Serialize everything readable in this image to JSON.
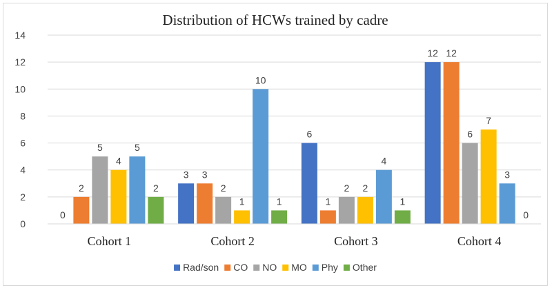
{
  "chart_data": {
    "type": "bar",
    "title": "Distribution of HCWs trained by cadre",
    "xlabel": "",
    "ylabel": "",
    "ylim": [
      0,
      14
    ],
    "yticks": [
      0,
      2,
      4,
      6,
      8,
      10,
      12,
      14
    ],
    "grid": true,
    "legend_position": "bottom",
    "categories": [
      "Cohort 1",
      "Cohort 2",
      "Cohort 3",
      "Cohort 4"
    ],
    "series": [
      {
        "name": "Rad/son",
        "color": "#4472C4",
        "values": [
          0,
          3,
          6,
          12
        ]
      },
      {
        "name": "CO",
        "color": "#ED7D31",
        "values": [
          2,
          3,
          1,
          12
        ]
      },
      {
        "name": "NO",
        "color": "#A5A5A5",
        "values": [
          5,
          2,
          2,
          6
        ]
      },
      {
        "name": "MO",
        "color": "#FFC000",
        "values": [
          4,
          1,
          2,
          7
        ]
      },
      {
        "name": "Phy",
        "color": "#5B9BD5",
        "values": [
          5,
          10,
          4,
          3
        ]
      },
      {
        "name": "Other",
        "color": "#70AD47",
        "values": [
          2,
          1,
          1,
          0
        ]
      }
    ]
  }
}
